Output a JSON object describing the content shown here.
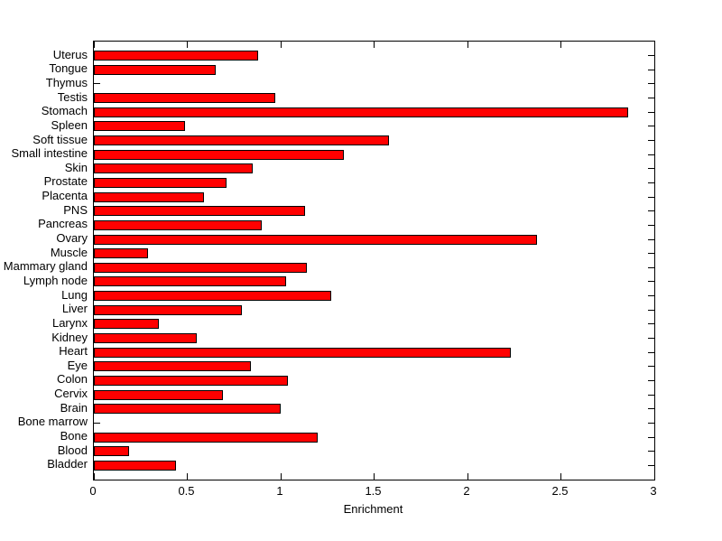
{
  "figure": {
    "background_color": "#ffffff",
    "axis_color": "#000000",
    "text_color": "#000000"
  },
  "chart_data": {
    "type": "bar",
    "orientation": "horizontal",
    "title": "",
    "xlabel": "Enrichment",
    "ylabel": "",
    "xlim": [
      0,
      3
    ],
    "xticks": [
      0,
      0.5,
      1,
      1.5,
      2,
      2.5,
      3
    ],
    "xtick_labels": [
      "0",
      "0.5",
      "1",
      "1.5",
      "2",
      "2.5",
      "3"
    ],
    "grid": false,
    "legend": "none",
    "bar_color": "#ff0000",
    "bar_edge_color": "#000000",
    "categories_top_to_bottom": [
      "Uterus",
      "Tongue",
      "Thymus",
      "Testis",
      "Stomach",
      "Spleen",
      "Soft tissue",
      "Small intestine",
      "Skin",
      "Prostate",
      "Placenta",
      "PNS",
      "Pancreas",
      "Ovary",
      "Muscle",
      "Mammary gland",
      "Lymph node",
      "Lung",
      "Liver",
      "Larynx",
      "Kidney",
      "Heart",
      "Eye",
      "Colon",
      "Cervix",
      "Brain",
      "Bone marrow",
      "Bone",
      "Blood",
      "Bladder"
    ],
    "values_top_to_bottom": [
      0.88,
      0.65,
      0,
      0.97,
      2.86,
      0.49,
      1.58,
      1.34,
      0.85,
      0.71,
      0.59,
      1.13,
      0.9,
      2.37,
      0.29,
      1.14,
      1.03,
      1.27,
      0.79,
      0.35,
      0.55,
      2.23,
      0.84,
      1.04,
      0.69,
      1.0,
      0,
      1.2,
      0.19,
      0.44
    ]
  }
}
